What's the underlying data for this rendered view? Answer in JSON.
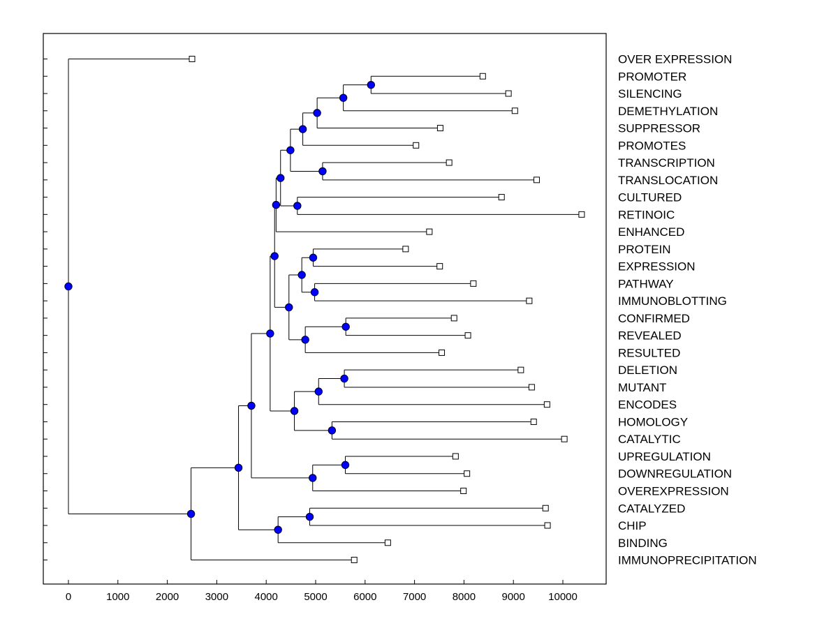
{
  "chart_data": {
    "type": "dendrogram",
    "orientation": "horizontal",
    "xlim": [
      -500,
      10850
    ],
    "xticks": [
      0,
      1000,
      2000,
      3000,
      4000,
      5000,
      6000,
      7000,
      8000,
      9000,
      10000
    ],
    "leaves": [
      {
        "label": "OVER EXPRESSION",
        "value": 2500
      },
      {
        "label": "PROMOTER",
        "value": 8380
      },
      {
        "label": "SILENCING",
        "value": 8900
      },
      {
        "label": "DEMETHYLATION",
        "value": 9030
      },
      {
        "label": "SUPPRESSOR",
        "value": 7520
      },
      {
        "label": "PROMOTES",
        "value": 7030
      },
      {
        "label": "TRANSCRIPTION",
        "value": 7700
      },
      {
        "label": "TRANSLOCATION",
        "value": 9470
      },
      {
        "label": "CULTURED",
        "value": 8760
      },
      {
        "label": "RETINOIC",
        "value": 10380
      },
      {
        "label": "ENHANCED",
        "value": 7300
      },
      {
        "label": "PROTEIN",
        "value": 6820
      },
      {
        "label": "EXPRESSION",
        "value": 7510
      },
      {
        "label": "PATHWAY",
        "value": 8190
      },
      {
        "label": "IMMUNOBLOTTING",
        "value": 9320
      },
      {
        "label": "CONFIRMED",
        "value": 7800
      },
      {
        "label": "REVEALED",
        "value": 8080
      },
      {
        "label": "RESULTED",
        "value": 7550
      },
      {
        "label": "DELETION",
        "value": 9150
      },
      {
        "label": "MUTANT",
        "value": 9370
      },
      {
        "label": "ENCODES",
        "value": 9680
      },
      {
        "label": "HOMOLOGY",
        "value": 9410
      },
      {
        "label": "CATALYTIC",
        "value": 10030
      },
      {
        "label": "UPREGULATION",
        "value": 7830
      },
      {
        "label": "DOWNREGULATION",
        "value": 8060
      },
      {
        "label": "OVEREXPRESSION",
        "value": 7990
      },
      {
        "label": "CATALYZED",
        "value": 9650
      },
      {
        "label": "CHIP",
        "value": 9690
      },
      {
        "label": "BINDING",
        "value": 6460
      },
      {
        "label": "IMMUNOPRECIPITATION",
        "value": 5780
      }
    ],
    "merges": [
      {
        "id": "N_PS",
        "value": 6120,
        "children": [
          "PROMOTER",
          "SILENCING"
        ]
      },
      {
        "id": "N_PSD",
        "value": 5560,
        "children": [
          "N_PS",
          "DEMETHYLATION"
        ]
      },
      {
        "id": "N_A4",
        "value": 5030,
        "children": [
          "N_PSD",
          "SUPPRESSOR"
        ]
      },
      {
        "id": "N_A5",
        "value": 4740,
        "children": [
          "N_A4",
          "PROMOTES"
        ]
      },
      {
        "id": "N_TT",
        "value": 5140,
        "children": [
          "TRANSCRIPTION",
          "TRANSLOCATION"
        ]
      },
      {
        "id": "N_A6",
        "value": 4490,
        "children": [
          "N_A5",
          "N_TT"
        ]
      },
      {
        "id": "N_CR",
        "value": 4630,
        "children": [
          "CULTURED",
          "RETINOIC"
        ]
      },
      {
        "id": "N_A7",
        "value": 4290,
        "children": [
          "N_A6",
          "N_CR"
        ]
      },
      {
        "id": "N_A8",
        "value": 4200,
        "children": [
          "N_A7",
          "ENHANCED"
        ]
      },
      {
        "id": "N_PE",
        "value": 4950,
        "children": [
          "PROTEIN",
          "EXPRESSION"
        ]
      },
      {
        "id": "N_PI",
        "value": 4980,
        "children": [
          "PATHWAY",
          "IMMUNOBLOTTING"
        ]
      },
      {
        "id": "N_B3",
        "value": 4720,
        "children": [
          "N_PE",
          "N_PI"
        ]
      },
      {
        "id": "N_CRV",
        "value": 5610,
        "children": [
          "CONFIRMED",
          "REVEALED"
        ]
      },
      {
        "id": "N_C2",
        "value": 4790,
        "children": [
          "N_CRV",
          "RESULTED"
        ]
      },
      {
        "id": "N_B4",
        "value": 4460,
        "children": [
          "N_B3",
          "N_C2"
        ]
      },
      {
        "id": "N_AB",
        "value": 4170,
        "children": [
          "N_A8",
          "N_B4"
        ]
      },
      {
        "id": "N_DM",
        "value": 5580,
        "children": [
          "DELETION",
          "MUTANT"
        ]
      },
      {
        "id": "N_DME",
        "value": 5060,
        "children": [
          "N_DM",
          "ENCODES"
        ]
      },
      {
        "id": "N_HC",
        "value": 5330,
        "children": [
          "HOMOLOGY",
          "CATALYTIC"
        ]
      },
      {
        "id": "N_D3",
        "value": 4570,
        "children": [
          "N_DME",
          "N_HC"
        ]
      },
      {
        "id": "N_ABD",
        "value": 4080,
        "children": [
          "N_AB",
          "N_D3"
        ]
      },
      {
        "id": "N_UD",
        "value": 5600,
        "children": [
          "UPREGULATION",
          "DOWNREGULATION"
        ]
      },
      {
        "id": "N_UDO",
        "value": 4940,
        "children": [
          "N_UD",
          "OVEREXPRESSION"
        ]
      },
      {
        "id": "N_AE",
        "value": 3700,
        "children": [
          "N_ABD",
          "N_UDO"
        ]
      },
      {
        "id": "N_CC",
        "value": 4880,
        "children": [
          "CATALYZED",
          "CHIP"
        ]
      },
      {
        "id": "N_CCB",
        "value": 4240,
        "children": [
          "N_CC",
          "BINDING"
        ]
      },
      {
        "id": "N_AF",
        "value": 3440,
        "children": [
          "N_AE",
          "N_CCB"
        ]
      },
      {
        "id": "N_AFI",
        "value": 2480,
        "children": [
          "N_AF",
          "IMMUNOPRECIPITATION"
        ]
      },
      {
        "id": "ROOT",
        "value": 0,
        "children": [
          "OVER EXPRESSION",
          "N_AFI"
        ]
      }
    ]
  },
  "colors": {
    "node_fill": "#0000ff",
    "line": "#000000",
    "background": "#ffffff"
  }
}
